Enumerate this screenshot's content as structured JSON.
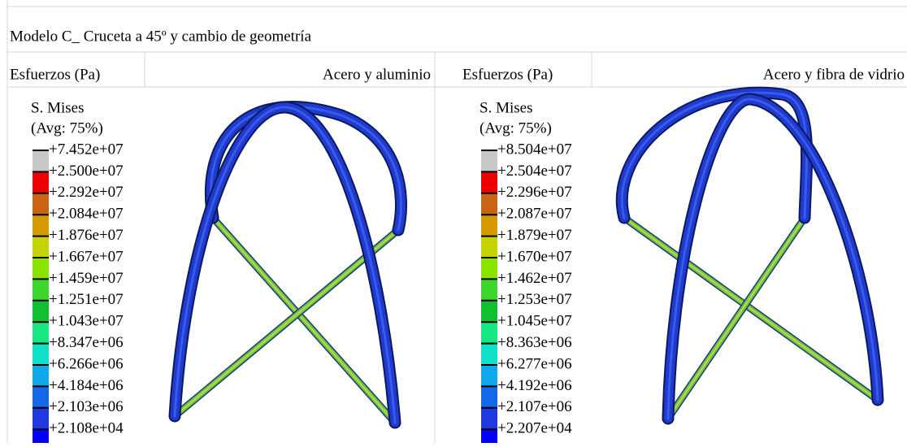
{
  "title": "Modelo C_ Cruceta a 45º y cambio de geometría",
  "panels": [
    {
      "header_left": "Esfuerzos (Pa)",
      "header_right": "Acero y aluminio",
      "legend": {
        "title": "S. Mises",
        "subtitle": "(Avg: 75%)",
        "labels": [
          "+7.452e+07",
          "+2.500e+07",
          "+2.292e+07",
          "+2.084e+07",
          "+1.876e+07",
          "+1.667e+07",
          "+1.459e+07",
          "+1.251e+07",
          "+1.043e+07",
          "+8.347e+06",
          "+6.266e+06",
          "+4.184e+06",
          "+2.103e+06",
          "+2.108e+04"
        ],
        "colors": [
          "#c8c8c8",
          "#ee0000",
          "#c86414",
          "#d49a00",
          "#c4d400",
          "#8ae400",
          "#3ed62c",
          "#10c030",
          "#18e884",
          "#10e0c8",
          "#10a8e8",
          "#1468e8",
          "#2038e0",
          "#0000f8"
        ]
      }
    },
    {
      "header_left": "Esfuerzos (Pa)",
      "header_right": "Acero y fibra de vidrio",
      "legend": {
        "title": "S. Mises",
        "subtitle": "(Avg: 75%)",
        "labels": [
          "+8.504e+07",
          "+2.504e+07",
          "+2.296e+07",
          "+2.087e+07",
          "+1.879e+07",
          "+1.670e+07",
          "+1.462e+07",
          "+1.253e+07",
          "+1.045e+07",
          "+8.363e+06",
          "+6.277e+06",
          "+4.192e+06",
          "+2.107e+06",
          "+2.207e+04"
        ],
        "colors": [
          "#c8c8c8",
          "#ee0000",
          "#c86414",
          "#d49a00",
          "#c4d400",
          "#8ae400",
          "#3ed62c",
          "#10c030",
          "#18e884",
          "#10e0c8",
          "#10a8e8",
          "#1468e8",
          "#2038e0",
          "#0000f8"
        ]
      }
    }
  ]
}
